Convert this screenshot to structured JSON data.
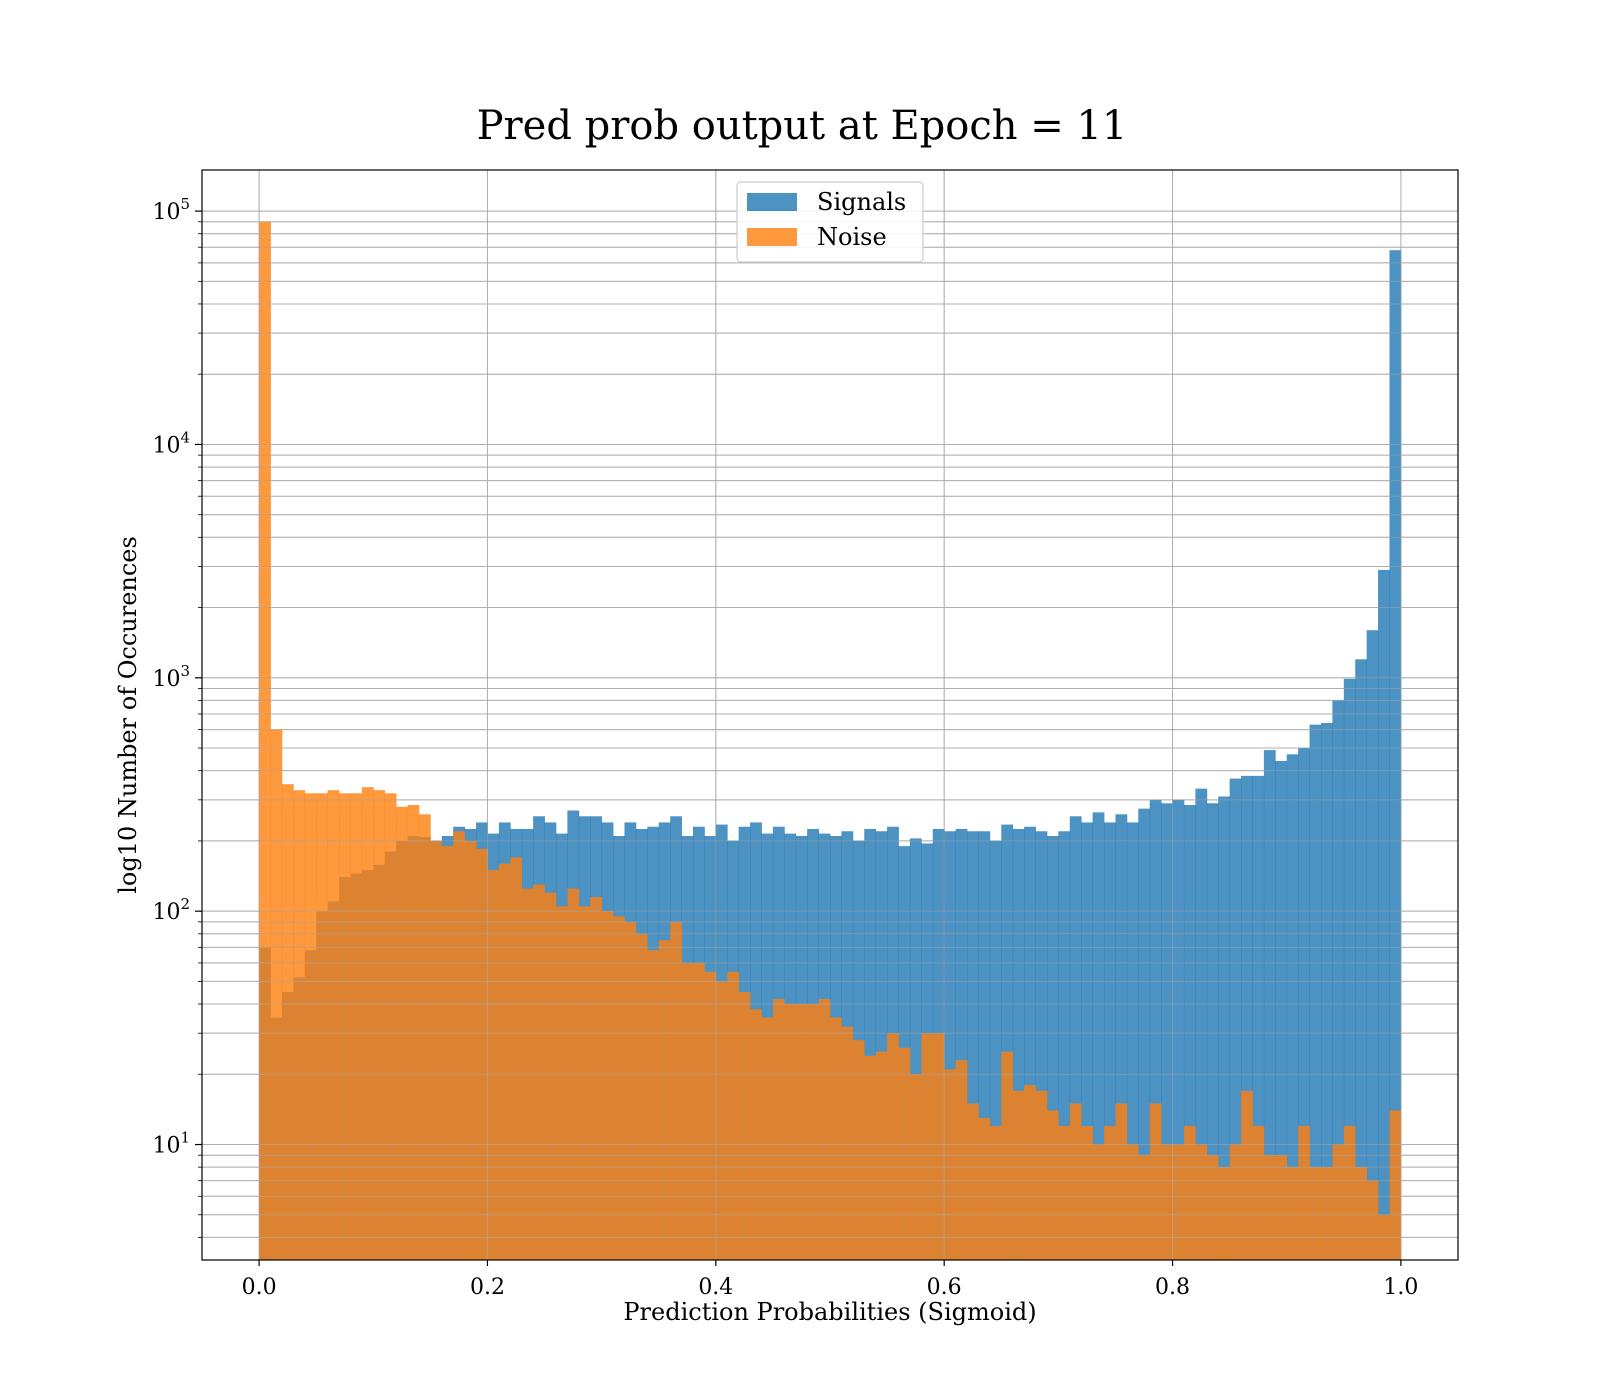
{
  "chart_data": {
    "type": "bar",
    "subtype": "histogram",
    "title": "Pred prob output at Epoch = 11",
    "xlabel": "Prediction Probabilities (Sigmoid)",
    "ylabel": "log10 Number of Occurences",
    "xlim": [
      -0.05,
      1.05
    ],
    "ylim": [
      3.2,
      150000
    ],
    "yscale": "log",
    "grid": true,
    "legend_position": "upper center",
    "bins": {
      "start": 0.0,
      "end": 1.0,
      "count": 100
    },
    "x_ticks": [
      "0.0",
      "0.2",
      "0.4",
      "0.6",
      "0.8",
      "1.0"
    ],
    "y_ticks": [
      {
        "base": "10",
        "exp": "1"
      },
      {
        "base": "10",
        "exp": "2"
      },
      {
        "base": "10",
        "exp": "3"
      },
      {
        "base": "10",
        "exp": "4"
      },
      {
        "base": "10",
        "exp": "5"
      }
    ],
    "series": [
      {
        "name": "Signals",
        "color": "#1f77b4",
        "opacity": 0.8,
        "values": [
          70,
          35,
          45,
          52,
          68,
          100,
          110,
          140,
          145,
          150,
          158,
          180,
          200,
          210,
          208,
          200,
          210,
          230,
          225,
          240,
          215,
          240,
          225,
          225,
          255,
          240,
          215,
          270,
          255,
          255,
          240,
          210,
          240,
          225,
          230,
          240,
          255,
          210,
          230,
          210,
          235,
          200,
          230,
          240,
          215,
          230,
          215,
          210,
          225,
          215,
          210,
          220,
          200,
          225,
          220,
          230,
          190,
          205,
          195,
          225,
          220,
          225,
          220,
          220,
          200,
          235,
          225,
          230,
          220,
          210,
          220,
          255,
          240,
          265,
          240,
          260,
          240,
          275,
          300,
          290,
          300,
          285,
          335,
          290,
          310,
          370,
          380,
          380,
          490,
          440,
          470,
          500,
          630,
          640,
          800,
          990,
          1200,
          1600,
          2900,
          68000
        ]
      },
      {
        "name": "Noise",
        "color": "#ff7f0e",
        "opacity": 0.8,
        "values": [
          90000,
          600,
          350,
          330,
          320,
          320,
          330,
          320,
          320,
          340,
          330,
          320,
          280,
          285,
          260,
          200,
          190,
          220,
          200,
          185,
          150,
          160,
          170,
          125,
          130,
          120,
          105,
          125,
          105,
          115,
          100,
          95,
          90,
          80,
          68,
          75,
          90,
          60,
          60,
          55,
          50,
          55,
          45,
          38,
          35,
          42,
          40,
          40,
          40,
          42,
          35,
          32,
          28,
          24,
          25,
          30,
          26,
          20,
          30,
          30,
          21,
          23,
          15,
          13,
          12,
          25,
          17,
          18,
          17,
          14,
          12,
          15,
          12,
          10,
          12,
          15,
          10,
          9,
          15,
          10,
          10,
          12,
          10,
          9,
          8,
          10,
          17,
          12,
          9,
          9,
          8,
          12,
          8,
          8,
          10,
          12,
          8,
          7,
          5,
          14
        ]
      }
    ]
  }
}
